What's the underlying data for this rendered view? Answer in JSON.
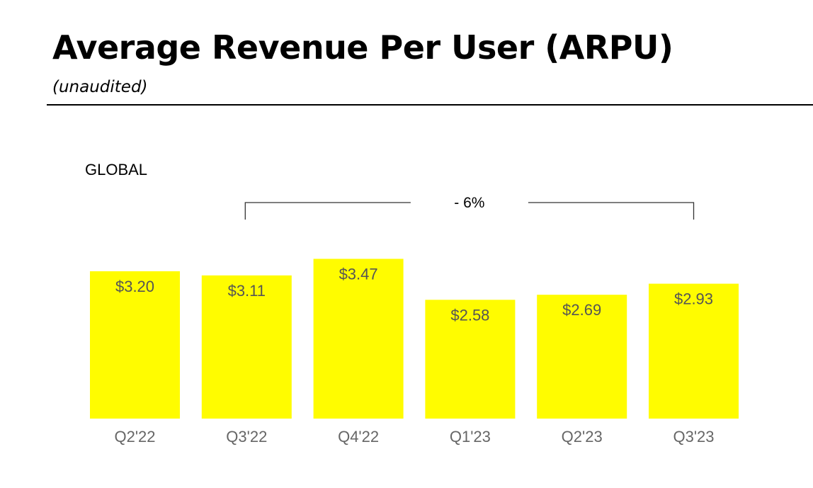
{
  "header": {
    "title": "Average Revenue Per User (ARPU)",
    "subtitle": "(unaudited)"
  },
  "colors": {
    "bar": "#fffc00",
    "value_label": "#555555",
    "tick_label": "#666666",
    "bracket": "#333333"
  },
  "chart_data": {
    "type": "bar",
    "title": "",
    "panel_label": "GLOBAL",
    "categories": [
      "Q2'22",
      "Q3'22",
      "Q4'22",
      "Q1'23",
      "Q2'23",
      "Q3'23"
    ],
    "values": [
      3.2,
      3.11,
      3.47,
      2.58,
      2.69,
      2.93
    ],
    "value_labels": [
      "$3.20",
      "$3.11",
      "$3.47",
      "$2.58",
      "$2.69",
      "$2.93"
    ],
    "xlabel": "",
    "ylabel": "",
    "ylim": [
      0,
      3.7
    ],
    "grid": false,
    "legend": "none",
    "annotation": {
      "text": "- 6%",
      "from_category": "Q3'22",
      "to_category": "Q3'23"
    }
  }
}
